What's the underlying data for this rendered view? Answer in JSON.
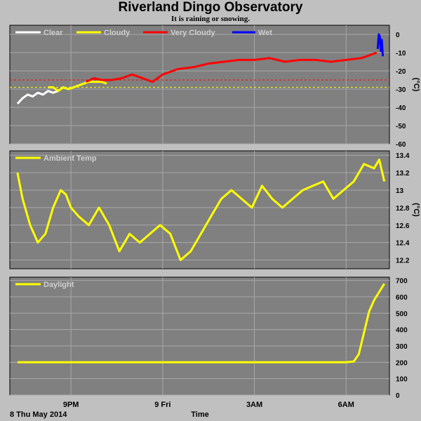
{
  "title": "Riverland Dingo Observatory",
  "subtitle": "It is raining or snowing.",
  "x_axis": {
    "label": "Time",
    "date_label": "8 Thu May 2014",
    "ticks": [
      "9PM",
      "9 Fri",
      "3AM",
      "6AM"
    ]
  },
  "chart_data": [
    {
      "type": "line",
      "panel": "Sky temperature / cloud",
      "ylabel": "(°C)",
      "ylim": [
        -60,
        5
      ],
      "yticks": [
        0,
        -10,
        -20,
        -30,
        -40,
        -50,
        -60
      ],
      "grid": true,
      "legend": "top-left",
      "thresholds": [
        {
          "value": -25,
          "color": "#ff0000"
        },
        {
          "value": -29,
          "color": "#ffff00"
        }
      ],
      "series": [
        {
          "name": "Clear",
          "color": "#ffffff",
          "x": [
            "2014-05-08 19:15",
            "2014-05-08 19:25",
            "2014-05-08 19:35",
            "2014-05-08 19:45",
            "2014-05-08 19:55",
            "2014-05-08 20:05",
            "2014-05-08 20:15",
            "2014-05-08 20:25",
            "2014-05-08 20:35"
          ],
          "y": [
            -38,
            -35,
            -33,
            -34,
            -32,
            -33,
            -31,
            -32,
            -31
          ]
        },
        {
          "name": "Cloudy",
          "color": "#ffff00",
          "x": [
            "2014-05-08 20:15",
            "2014-05-08 20:25",
            "2014-05-08 20:35",
            "2014-05-08 20:45",
            "2014-05-08 20:55",
            "2014-05-08 21:05",
            "2014-05-08 21:15",
            "2014-05-08 21:25",
            "2014-05-08 21:35",
            "2014-05-08 22:00",
            "2014-05-08 22:10"
          ],
          "y": [
            -29,
            -29,
            -31,
            -29,
            -30,
            -29,
            -28,
            -27,
            -26,
            -26,
            -27
          ]
        },
        {
          "name": "Very Cloudy",
          "color": "#ff0000",
          "x": [
            "2014-05-08 21:30",
            "2014-05-08 21:45",
            "2014-05-08 22:00",
            "2014-05-08 22:20",
            "2014-05-08 22:40",
            "2014-05-08 23:00",
            "2014-05-08 23:20",
            "2014-05-08 23:40",
            "2014-05-09 00:00",
            "2014-05-09 00:30",
            "2014-05-09 01:00",
            "2014-05-09 01:30",
            "2014-05-09 02:00",
            "2014-05-09 02:30",
            "2014-05-09 03:00",
            "2014-05-09 03:30",
            "2014-05-09 04:00",
            "2014-05-09 04:30",
            "2014-05-09 05:00",
            "2014-05-09 05:30",
            "2014-05-09 06:00",
            "2014-05-09 06:30",
            "2014-05-09 06:50",
            "2014-05-09 07:00"
          ],
          "y": [
            -26,
            -24,
            -25,
            -25,
            -24,
            -22,
            -24,
            -26,
            -22,
            -19,
            -18,
            -16,
            -15,
            -14,
            -14,
            -13,
            -15,
            -14,
            -14,
            -15,
            -14,
            -13,
            -11,
            -10
          ]
        },
        {
          "name": "Wet",
          "color": "#0000ff",
          "x": [
            "2014-05-09 07:02",
            "2014-05-09 07:04",
            "2014-05-09 07:06",
            "2014-05-09 07:08",
            "2014-05-09 07:10",
            "2014-05-09 07:12"
          ],
          "y": [
            -8,
            0,
            -1,
            -9,
            -3,
            -12
          ]
        }
      ]
    },
    {
      "type": "line",
      "panel": "Ambient temperature",
      "ylabel": "(°C)",
      "ylim": [
        12.1,
        13.45
      ],
      "yticks": [
        13.4,
        13.2,
        13.0,
        12.8,
        12.6,
        12.4,
        12.2
      ],
      "grid": true,
      "legend": "top-left",
      "series": [
        {
          "name": "Ambient Temp",
          "color": "#ffff00",
          "x": [
            "2014-05-08 19:15",
            "2014-05-08 19:25",
            "2014-05-08 19:40",
            "2014-05-08 19:55",
            "2014-05-08 20:10",
            "2014-05-08 20:25",
            "2014-05-08 20:40",
            "2014-05-08 20:50",
            "2014-05-08 21:00",
            "2014-05-08 21:15",
            "2014-05-08 21:35",
            "2014-05-08 21:55",
            "2014-05-08 22:15",
            "2014-05-08 22:35",
            "2014-05-08 22:55",
            "2014-05-08 23:15",
            "2014-05-08 23:35",
            "2014-05-08 23:55",
            "2014-05-09 00:15",
            "2014-05-09 00:35",
            "2014-05-09 00:55",
            "2014-05-09 01:15",
            "2014-05-09 01:35",
            "2014-05-09 01:55",
            "2014-05-09 02:15",
            "2014-05-09 02:35",
            "2014-05-09 02:55",
            "2014-05-09 03:15",
            "2014-05-09 03:35",
            "2014-05-09 03:55",
            "2014-05-09 04:15",
            "2014-05-09 04:35",
            "2014-05-09 04:55",
            "2014-05-09 05:15",
            "2014-05-09 05:35",
            "2014-05-09 05:55",
            "2014-05-09 06:15",
            "2014-05-09 06:35",
            "2014-05-09 06:55",
            "2014-05-09 07:05",
            "2014-05-09 07:15"
          ],
          "y": [
            13.2,
            12.9,
            12.6,
            12.4,
            12.5,
            12.8,
            13.0,
            12.95,
            12.8,
            12.7,
            12.6,
            12.8,
            12.6,
            12.3,
            12.5,
            12.4,
            12.5,
            12.6,
            12.5,
            12.2,
            12.3,
            12.5,
            12.7,
            12.9,
            13.0,
            12.9,
            12.8,
            13.05,
            12.9,
            12.8,
            12.9,
            13.0,
            13.05,
            13.1,
            12.9,
            13.0,
            13.1,
            13.3,
            13.25,
            13.35,
            13.1
          ]
        }
      ]
    },
    {
      "type": "line",
      "panel": "Daylight",
      "ylim": [
        0,
        720
      ],
      "yticks": [
        700,
        600,
        500,
        400,
        300,
        200,
        100,
        0
      ],
      "grid": true,
      "legend": "top-left",
      "series": [
        {
          "name": "Daylight",
          "color": "#ffff00",
          "x": [
            "2014-05-08 19:15",
            "2014-05-08 21:00",
            "2014-05-08 23:00",
            "2014-05-09 01:00",
            "2014-05-09 03:00",
            "2014-05-09 05:00",
            "2014-05-09 06:00",
            "2014-05-09 06:15",
            "2014-05-09 06:25",
            "2014-05-09 06:35",
            "2014-05-09 06:45",
            "2014-05-09 06:55",
            "2014-05-09 07:05",
            "2014-05-09 07:15"
          ],
          "y": [
            200,
            200,
            200,
            200,
            200,
            200,
            200,
            205,
            250,
            380,
            510,
            580,
            630,
            680
          ]
        }
      ]
    }
  ]
}
